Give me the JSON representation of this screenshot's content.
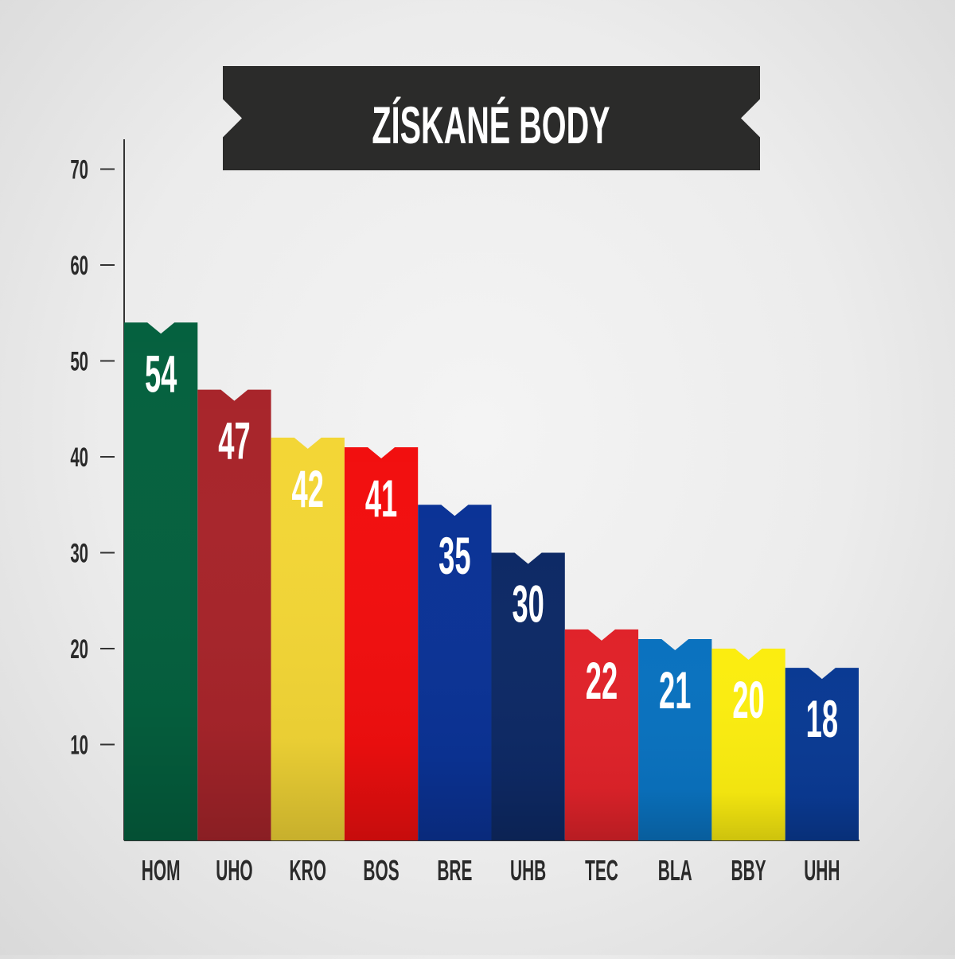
{
  "chart_data": {
    "type": "bar",
    "title": "ZÍSKANÉ BODY",
    "xlabel": "",
    "ylabel": "",
    "categories": [
      "HOM",
      "UHO",
      "KRO",
      "BOS",
      "BRE",
      "UHB",
      "TEC",
      "BLA",
      "BBY",
      "UHH"
    ],
    "values": [
      54,
      47,
      42,
      41,
      35,
      30,
      22,
      21,
      20,
      18
    ],
    "bar_colors": [
      "#05613f",
      "#a8252b",
      "#f3d636",
      "#f20f0f",
      "#0b3396",
      "#0e2a66",
      "#e0232a",
      "#0a72bf",
      "#fbed10",
      "#0a3a93"
    ],
    "yticks": [
      10,
      20,
      30,
      40,
      50,
      60,
      70
    ],
    "ylim": [
      0,
      70
    ],
    "grid": false,
    "legend": "none",
    "data_labels": true
  },
  "colors": {
    "title_banner": "#2b2b2a",
    "title_text": "#ffffff",
    "axis": "#333333",
    "label_text": "#2a2a2a",
    "value_text": "#ffffff"
  }
}
